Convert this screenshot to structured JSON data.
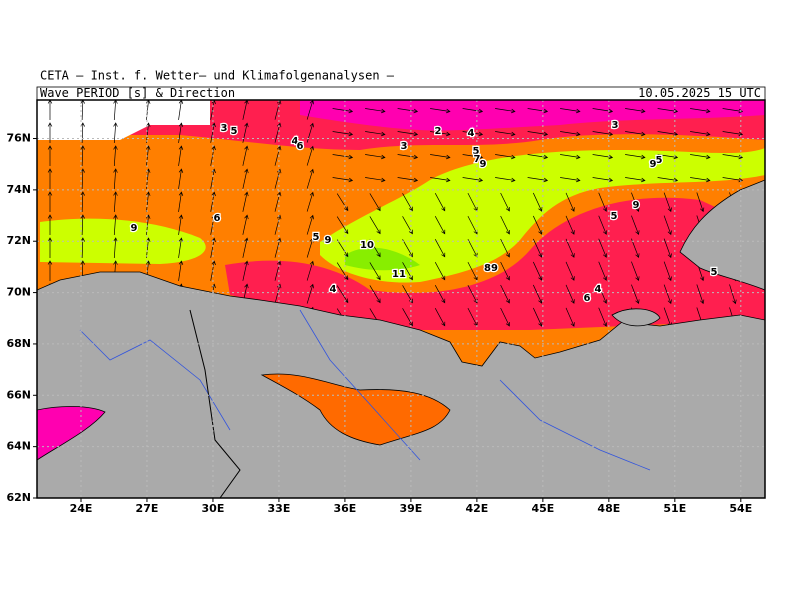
{
  "header": {
    "source": "CETA — Inst. f. Wetter— und Klimafolgenanalysen —",
    "title": "Wave_PERIOD_[s]_&_Direction",
    "date": "10.05.2025 15 UTC"
  },
  "map": {
    "lonlim": [
      22,
      55.1
    ],
    "latlim": [
      62,
      77.5
    ],
    "lonticks": [
      {
        "value": 24,
        "label": "24E"
      },
      {
        "value": 27,
        "label": "27E"
      },
      {
        "value": 30,
        "label": "30E"
      },
      {
        "value": 33,
        "label": "33E"
      },
      {
        "value": 36,
        "label": "36E"
      },
      {
        "value": 39,
        "label": "39E"
      },
      {
        "value": 42,
        "label": "42E"
      },
      {
        "value": 45,
        "label": "45E"
      },
      {
        "value": 48,
        "label": "48E"
      },
      {
        "value": 51,
        "label": "51E"
      },
      {
        "value": 54,
        "label": "54E"
      }
    ],
    "latticks": [
      {
        "value": 62,
        "label": "62N"
      },
      {
        "value": 64,
        "label": "64N"
      },
      {
        "value": 66,
        "label": "66N"
      },
      {
        "value": 68,
        "label": "68N"
      },
      {
        "value": 70,
        "label": "70N"
      },
      {
        "value": 72,
        "label": "72N"
      },
      {
        "value": 74,
        "label": "74N"
      },
      {
        "value": 76,
        "label": "76N"
      }
    ],
    "contour_labels": [
      3,
      5,
      4,
      6,
      3,
      2,
      4,
      3,
      5,
      7,
      9,
      5,
      9,
      6,
      9,
      5,
      9,
      10,
      5,
      9,
      11,
      89,
      5,
      4,
      4,
      6
    ]
  }
}
